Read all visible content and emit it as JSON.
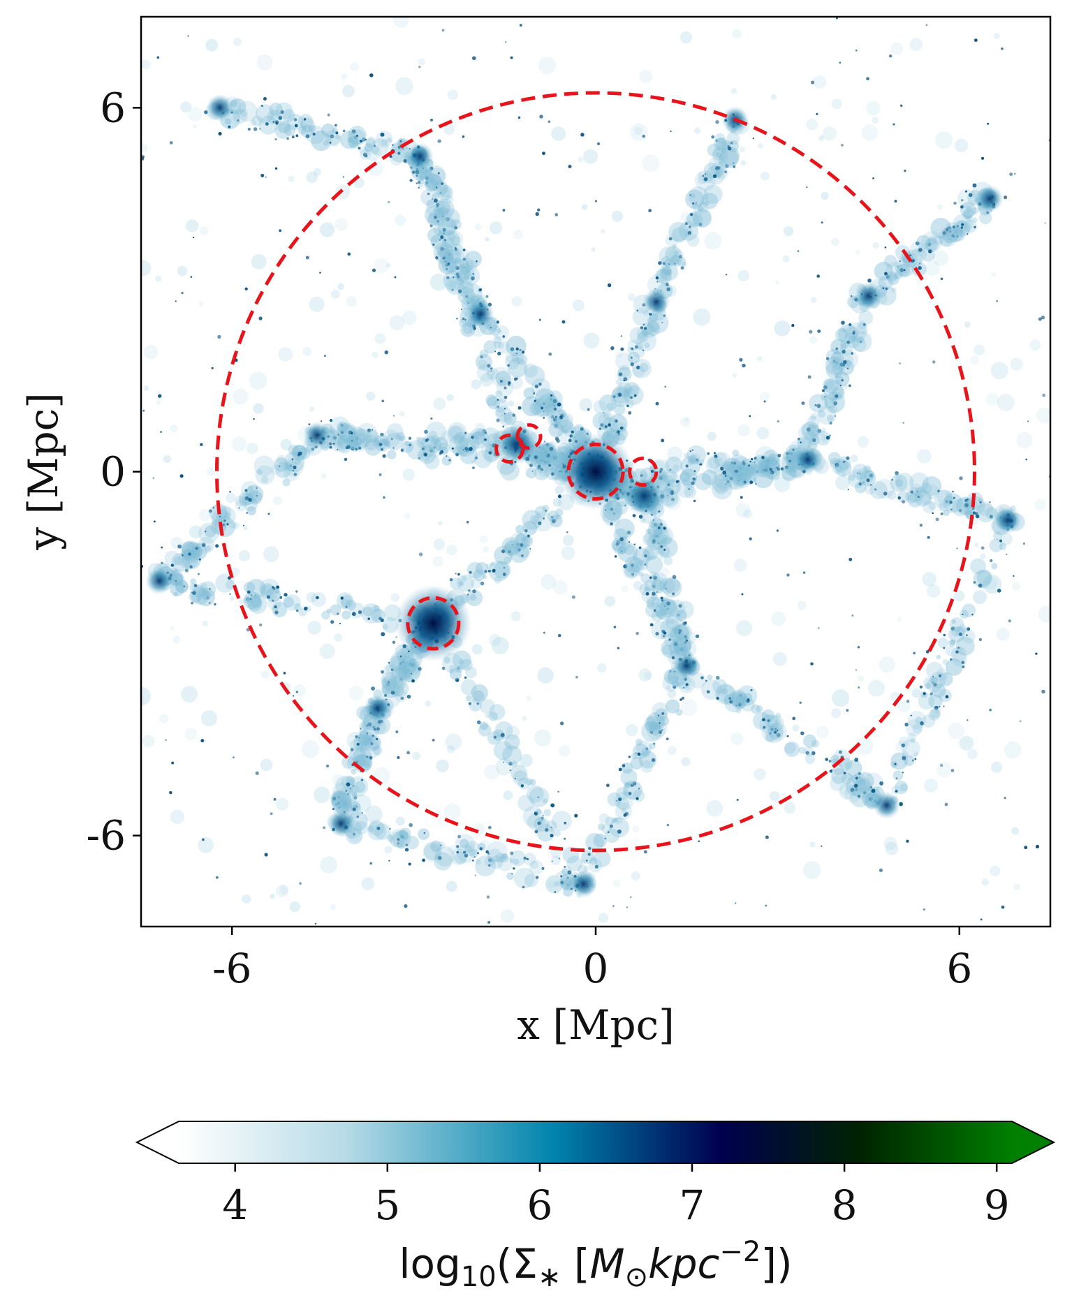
{
  "chart_data": {
    "type": "heatmap",
    "title": "",
    "xlabel": "x [Mpc]",
    "ylabel": "y [Mpc]",
    "xlim": [
      -7.5,
      7.5
    ],
    "ylim": [
      -7.5,
      7.5
    ],
    "xticks": [
      -6,
      0,
      6
    ],
    "yticks": [
      -6,
      0,
      6
    ],
    "xtick_labels": [
      "-6",
      "0",
      "6"
    ],
    "ytick_labels": [
      "-6",
      "0",
      "6"
    ],
    "grid": false,
    "field": "stellar surface mass density",
    "circles": [
      {
        "name": "main-region",
        "x": 0.0,
        "y": 0.0,
        "r": 6.25,
        "color": "#e8141b",
        "style": "dashed"
      },
      {
        "name": "central-halo",
        "x": 0.0,
        "y": 0.0,
        "r": 0.45,
        "color": "#e8141b",
        "style": "dashed"
      },
      {
        "name": "halo-east",
        "x": 0.78,
        "y": 0.0,
        "r": 0.22,
        "color": "#e8141b",
        "style": "dashed"
      },
      {
        "name": "halo-nw-a",
        "x": -1.42,
        "y": 0.38,
        "r": 0.22,
        "color": "#e8141b",
        "style": "dashed"
      },
      {
        "name": "halo-nw-b",
        "x": -1.1,
        "y": 0.58,
        "r": 0.19,
        "color": "#e8141b",
        "style": "dashed"
      },
      {
        "name": "halo-sw",
        "x": -2.68,
        "y": -2.5,
        "r": 0.42,
        "color": "#e8141b",
        "style": "dashed"
      }
    ],
    "colorbar": {
      "label_base": "log",
      "label_sub": "10",
      "label_mid": "(Σ",
      "label_star": "∗",
      "label_open": " [",
      "label_M": "M",
      "label_sun": "⊙",
      "label_kpc": "kpc",
      "label_exp": "−2",
      "label_close": "])",
      "vmin": 3.63,
      "vmax": 9.1,
      "ticks": [
        4,
        5,
        6,
        7,
        8,
        9
      ],
      "tick_labels": [
        "4",
        "5",
        "6",
        "7",
        "8",
        "9"
      ],
      "extend": "both",
      "colors": [
        "#ffffff",
        "#b7dbe7",
        "#0084ad",
        "#00004f",
        "#002300",
        "#007f00"
      ],
      "stops": [
        0.0,
        0.2,
        0.45,
        0.65,
        0.82,
        1.0
      ]
    }
  }
}
